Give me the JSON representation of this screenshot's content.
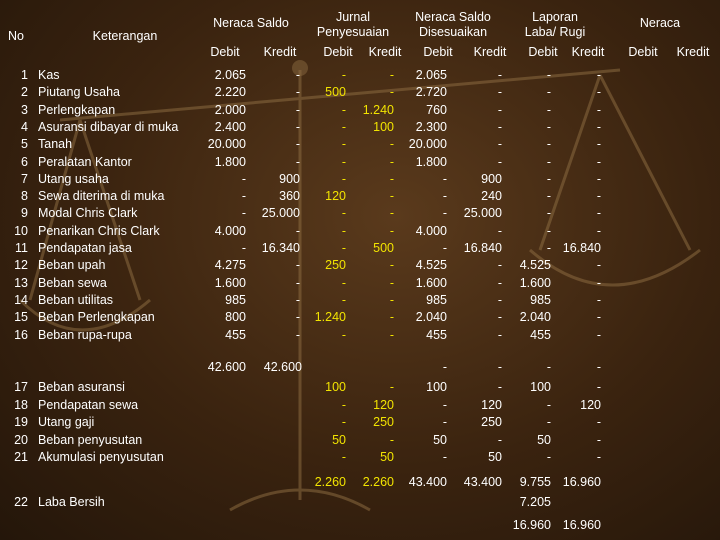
{
  "header": {
    "no": "No",
    "keterangan": "Keterangan",
    "neraca_saldo": "Neraca Saldo",
    "jurnal_penyesuaian_1": "Jurnal",
    "jurnal_penyesuaian_2": "Penyesuaian",
    "nsd_1": "Neraca Saldo",
    "nsd_2": "Disesuaikan",
    "laba_rugi_1": "Laporan",
    "laba_rugi_2": "Laba/ Rugi",
    "neraca": "Neraca",
    "debit": "Debit",
    "kredit": "Kredit"
  },
  "rows_top": [
    {
      "no": "1",
      "ket": "Kas",
      "ns_d": "2.065",
      "ns_k": "-",
      "jp_d": "-",
      "jp_k": "-",
      "nsd_d": "2.065",
      "nsd_k": "-",
      "lr_d": "-",
      "lr_k": "-"
    },
    {
      "no": "2",
      "ket": "Piutang Usaha",
      "ns_d": "2.220",
      "ns_k": "-",
      "jp_d": "500",
      "jp_k": "-",
      "nsd_d": "2.720",
      "nsd_k": "-",
      "lr_d": "-",
      "lr_k": "-"
    },
    {
      "no": "3",
      "ket": "Perlengkapan",
      "ns_d": "2.000",
      "ns_k": "-",
      "jp_d": "-",
      "jp_k": "1.240",
      "nsd_d": "760",
      "nsd_k": "-",
      "lr_d": "-",
      "lr_k": "-"
    },
    {
      "no": "4",
      "ket": "Asuransi dibayar  di muka",
      "ns_d": "2.400",
      "ns_k": "-",
      "jp_d": "-",
      "jp_k": "100",
      "nsd_d": "2.300",
      "nsd_k": "-",
      "lr_d": "-",
      "lr_k": "-"
    },
    {
      "no": "5",
      "ket": "Tanah",
      "ns_d": "20.000",
      "ns_k": "-",
      "jp_d": "-",
      "jp_k": "-",
      "nsd_d": "20.000",
      "nsd_k": "-",
      "lr_d": "-",
      "lr_k": "-"
    },
    {
      "no": "6",
      "ket": "Peralatan Kantor",
      "ns_d": "1.800",
      "ns_k": "-",
      "jp_d": "-",
      "jp_k": "-",
      "nsd_d": "1.800",
      "nsd_k": "-",
      "lr_d": "-",
      "lr_k": "-"
    },
    {
      "no": "7",
      "ket": "Utang usaha",
      "ns_d": "-",
      "ns_k": "900",
      "jp_d": "-",
      "jp_k": "-",
      "nsd_d": "-",
      "nsd_k": "900",
      "lr_d": "-",
      "lr_k": "-"
    },
    {
      "no": "8",
      "ket": "Sewa diterima di muka",
      "ns_d": "-",
      "ns_k": "360",
      "jp_d": "120",
      "jp_k": "-",
      "nsd_d": "-",
      "nsd_k": "240",
      "lr_d": "-",
      "lr_k": "-"
    },
    {
      "no": "9",
      "ket": "Modal Chris Clark",
      "ns_d": "-",
      "ns_k": "25.000",
      "jp_d": "-",
      "jp_k": "-",
      "nsd_d": "-",
      "nsd_k": "25.000",
      "lr_d": "-",
      "lr_k": "-"
    },
    {
      "no": "10",
      "ket": "Penarikan Chris Clark",
      "ns_d": "4.000",
      "ns_k": "-",
      "jp_d": "-",
      "jp_k": "-",
      "nsd_d": "4.000",
      "nsd_k": "-",
      "lr_d": "-",
      "lr_k": "-"
    },
    {
      "no": "11",
      "ket": "Pendapatan jasa",
      "ns_d": "-",
      "ns_k": "16.340",
      "jp_d": "-",
      "jp_k": "500",
      "nsd_d": "-",
      "nsd_k": "16.840",
      "lr_d": "-",
      "lr_k": "16.840"
    },
    {
      "no": "12",
      "ket": "Beban upah",
      "ns_d": "4.275",
      "ns_k": "-",
      "jp_d": "250",
      "jp_k": "-",
      "nsd_d": "4.525",
      "nsd_k": "-",
      "lr_d": "4.525",
      "lr_k": "-"
    },
    {
      "no": "13",
      "ket": "Beban sewa",
      "ns_d": "1.600",
      "ns_k": "-",
      "jp_d": "-",
      "jp_k": "-",
      "nsd_d": "1.600",
      "nsd_k": "-",
      "lr_d": "1.600",
      "lr_k": "-"
    },
    {
      "no": "14",
      "ket": "Beban utilitas",
      "ns_d": "985",
      "ns_k": "-",
      "jp_d": "-",
      "jp_k": "-",
      "nsd_d": "985",
      "nsd_k": "-",
      "lr_d": "985",
      "lr_k": "-"
    },
    {
      "no": "15",
      "ket": "Beban Perlengkapan",
      "ns_d": "800",
      "ns_k": "-",
      "jp_d": "1.240",
      "jp_k": "-",
      "nsd_d": "2.040",
      "nsd_k": "-",
      "lr_d": "2.040",
      "lr_k": "-"
    },
    {
      "no": "16",
      "ket": "Beban rupa-rupa",
      "ns_d": "455",
      "ns_k": "-",
      "jp_d": "-",
      "jp_k": "-",
      "nsd_d": "455",
      "nsd_k": "-",
      "lr_d": "455",
      "lr_k": "-"
    }
  ],
  "totals_ns": {
    "debit": "42.600",
    "kredit": "42.600",
    "nsd_d": "-",
    "nsd_k": "-",
    "lr_d": "-",
    "lr_k": "-"
  },
  "rows_bottom": [
    {
      "no": "17",
      "ket": "Beban asuransi",
      "jp_d": "100",
      "jp_k": "-",
      "nsd_d": "100",
      "nsd_k": "-",
      "lr_d": "100",
      "lr_k": "-"
    },
    {
      "no": "18",
      "ket": "Pendapatan sewa",
      "jp_d": "-",
      "jp_k": "120",
      "nsd_d": "-",
      "nsd_k": "120",
      "lr_d": "-",
      "lr_k": "120"
    },
    {
      "no": "19",
      "ket": "Utang gaji",
      "jp_d": "-",
      "jp_k": "250",
      "nsd_d": "-",
      "nsd_k": "250",
      "lr_d": "-",
      "lr_k": "-"
    },
    {
      "no": "20",
      "ket": "Beban penyusutan",
      "jp_d": "50",
      "jp_k": "-",
      "nsd_d": "50",
      "nsd_k": "-",
      "lr_d": "50",
      "lr_k": "-"
    },
    {
      "no": "21",
      "ket": "Akumulasi penyusutan",
      "jp_d": "-",
      "jp_k": "50",
      "nsd_d": "-",
      "nsd_k": "50",
      "lr_d": "-",
      "lr_k": "-"
    }
  ],
  "totals_all": {
    "jp_d": "2.260",
    "jp_k": "2.260",
    "nsd_d": "43.400",
    "nsd_k": "43.400",
    "lr_d": "9.755",
    "lr_k": "16.960"
  },
  "laba_bersih": {
    "no": "22",
    "ket": "Laba Bersih",
    "lr_d": "7.205"
  },
  "final_totals": {
    "lr_d": "16.960",
    "lr_k": "16.960"
  }
}
